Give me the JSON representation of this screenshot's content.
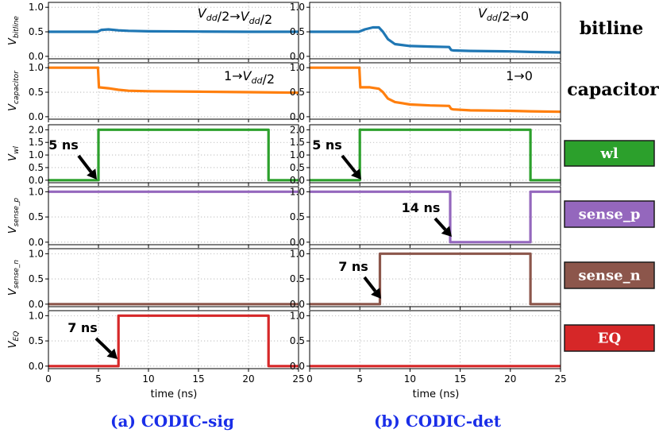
{
  "chart_data": [
    {
      "type": "line",
      "panel": "a",
      "row": "bitline",
      "ylabel_main": "V",
      "ylabel_sub": "bitline",
      "yticks": [
        "0.0",
        "0.5",
        "1.0"
      ],
      "ylim": [
        -0.05,
        1.1
      ],
      "transition": "V_dd/2→V_dd/2",
      "color": "#1f77b4",
      "x": [
        0,
        4.9,
        5.3,
        6,
        7,
        8,
        10,
        15,
        20,
        25
      ],
      "y": [
        0.5,
        0.5,
        0.54,
        0.55,
        0.53,
        0.52,
        0.51,
        0.505,
        0.5,
        0.5
      ]
    },
    {
      "type": "line",
      "panel": "b",
      "row": "bitline",
      "ylabel_main": "V",
      "ylabel_sub": "bitline",
      "yticks": [
        "0.0",
        "0.5",
        "1.0"
      ],
      "ylim": [
        -0.05,
        1.1
      ],
      "transition": "V_dd/2→0",
      "color": "#1f77b4",
      "x": [
        0,
        4.9,
        5.5,
        6.3,
        6.9,
        7.3,
        7.8,
        8.5,
        10,
        12,
        13.9,
        14.1,
        14.3,
        16,
        20,
        22,
        25
      ],
      "y": [
        0.5,
        0.5,
        0.55,
        0.59,
        0.59,
        0.5,
        0.35,
        0.25,
        0.21,
        0.2,
        0.19,
        0.13,
        0.12,
        0.11,
        0.1,
        0.09,
        0.08
      ]
    },
    {
      "type": "line",
      "panel": "a",
      "row": "capacitor",
      "ylabel_main": "V",
      "ylabel_sub": "capacitor",
      "yticks": [
        "0.0",
        "0.5",
        "1.0"
      ],
      "ylim": [
        -0.05,
        1.1
      ],
      "transition": "1→V_dd/2",
      "color": "#ff7f0e",
      "x": [
        0,
        4.95,
        5.05,
        6,
        7,
        8,
        10,
        15,
        20,
        25
      ],
      "y": [
        1,
        1,
        0.6,
        0.58,
        0.55,
        0.53,
        0.52,
        0.51,
        0.5,
        0.49
      ]
    },
    {
      "type": "line",
      "panel": "b",
      "row": "capacitor",
      "ylabel_main": "V",
      "ylabel_sub": "capacitor",
      "yticks": [
        "0.0",
        "0.5",
        "1.0"
      ],
      "ylim": [
        -0.05,
        1.1
      ],
      "transition": "1→0",
      "color": "#ff7f0e",
      "x": [
        0,
        4.95,
        5.05,
        6,
        6.9,
        7.3,
        7.8,
        8.5,
        10,
        12,
        13.9,
        14.1,
        14.3,
        16,
        20,
        22,
        25
      ],
      "y": [
        1,
        1,
        0.6,
        0.6,
        0.57,
        0.5,
        0.37,
        0.3,
        0.25,
        0.23,
        0.22,
        0.16,
        0.15,
        0.13,
        0.12,
        0.11,
        0.1
      ]
    },
    {
      "type": "line",
      "panel": "a",
      "row": "wl",
      "ylabel_main": "V",
      "ylabel_sub": "wl",
      "yticks": [
        "0.0",
        "0.5",
        "1.0",
        "1.5",
        "2.0"
      ],
      "ylim": [
        -0.1,
        2.2
      ],
      "signal": "wl",
      "color": "#2ca02c",
      "annotation": "5 ns",
      "x": [
        0,
        5,
        5,
        22,
        22,
        25
      ],
      "y": [
        0,
        0,
        2,
        2,
        0,
        0
      ]
    },
    {
      "type": "line",
      "panel": "b",
      "row": "wl",
      "ylabel_main": "V",
      "ylabel_sub": "wl",
      "yticks": [
        "0.0",
        "0.5",
        "1.0",
        "1.5",
        "2.0"
      ],
      "ylim": [
        -0.1,
        2.2
      ],
      "signal": "wl",
      "color": "#2ca02c",
      "annotation": "5 ns",
      "x": [
        0,
        5,
        5,
        22,
        22,
        25
      ],
      "y": [
        0,
        0,
        2,
        2,
        0,
        0
      ]
    },
    {
      "type": "line",
      "panel": "a",
      "row": "sense_p",
      "ylabel_main": "V",
      "ylabel_sub": "sense_p",
      "yticks": [
        "0.0",
        "0.5",
        "1.0"
      ],
      "ylim": [
        -0.05,
        1.1
      ],
      "signal": "sense_p",
      "color": "#9467bd",
      "x": [
        0,
        25
      ],
      "y": [
        1,
        1
      ]
    },
    {
      "type": "line",
      "panel": "b",
      "row": "sense_p",
      "ylabel_main": "V",
      "ylabel_sub": "sense_p",
      "yticks": [
        "0.0",
        "0.5",
        "1.0"
      ],
      "ylim": [
        -0.05,
        1.1
      ],
      "signal": "sense_p",
      "color": "#9467bd",
      "annotation": "14 ns",
      "x": [
        0,
        14,
        14,
        22,
        22,
        25
      ],
      "y": [
        1,
        1,
        0,
        0,
        1,
        1
      ]
    },
    {
      "type": "line",
      "panel": "a",
      "row": "sense_n",
      "ylabel_main": "V",
      "ylabel_sub": "sense_n",
      "yticks": [
        "0.0",
        "0.5",
        "1.0"
      ],
      "ylim": [
        -0.05,
        1.1
      ],
      "signal": "sense_n",
      "color": "#8c564b",
      "x": [
        0,
        25
      ],
      "y": [
        0,
        0
      ]
    },
    {
      "type": "line",
      "panel": "b",
      "row": "sense_n",
      "ylabel_main": "V",
      "ylabel_sub": "sense_n",
      "yticks": [
        "0.0",
        "0.5",
        "1.0"
      ],
      "ylim": [
        -0.05,
        1.1
      ],
      "signal": "sense_n",
      "color": "#8c564b",
      "annotation": "7 ns",
      "x": [
        0,
        7,
        7,
        22,
        22,
        25
      ],
      "y": [
        0,
        0,
        1,
        1,
        0,
        0
      ]
    },
    {
      "type": "line",
      "panel": "a",
      "row": "EQ",
      "ylabel_main": "V",
      "ylabel_sub": "EQ",
      "yticks": [
        "0.0",
        "0.5",
        "1.0"
      ],
      "ylim": [
        -0.05,
        1.1
      ],
      "signal": "EQ",
      "color": "#d62728",
      "annotation": "7 ns",
      "x": [
        0,
        7,
        7,
        22,
        22,
        25
      ],
      "y": [
        0,
        0,
        1,
        1,
        0,
        0
      ]
    },
    {
      "type": "line",
      "panel": "b",
      "row": "EQ",
      "ylabel_main": "V",
      "ylabel_sub": "EQ",
      "yticks": [
        "0.0",
        "0.5",
        "1.0"
      ],
      "ylim": [
        -0.05,
        1.1
      ],
      "signal": "EQ",
      "color": "#d62728",
      "x": [
        0,
        25
      ],
      "y": [
        0,
        0
      ]
    }
  ],
  "axes": {
    "xlabel": "time (ns)",
    "xlim": [
      0,
      25
    ],
    "xticks": [
      "0",
      "5",
      "10",
      "15",
      "20",
      "25"
    ],
    "grid": "dotted"
  },
  "row_labels": {
    "bitline": "bitline",
    "capacitor": "capacitor"
  },
  "signal_boxes": [
    {
      "name": "wl",
      "label": "wl",
      "color": "#2ca02c"
    },
    {
      "name": "sense_p",
      "label": "sense_p",
      "color": "#9467bd"
    },
    {
      "name": "sense_n",
      "label": "sense_n",
      "color": "#8c564b"
    },
    {
      "name": "EQ",
      "label": "EQ",
      "color": "#d62728"
    }
  ],
  "captions": {
    "a": "(a) CODIC-sig",
    "b": "(b) CODIC-det"
  }
}
